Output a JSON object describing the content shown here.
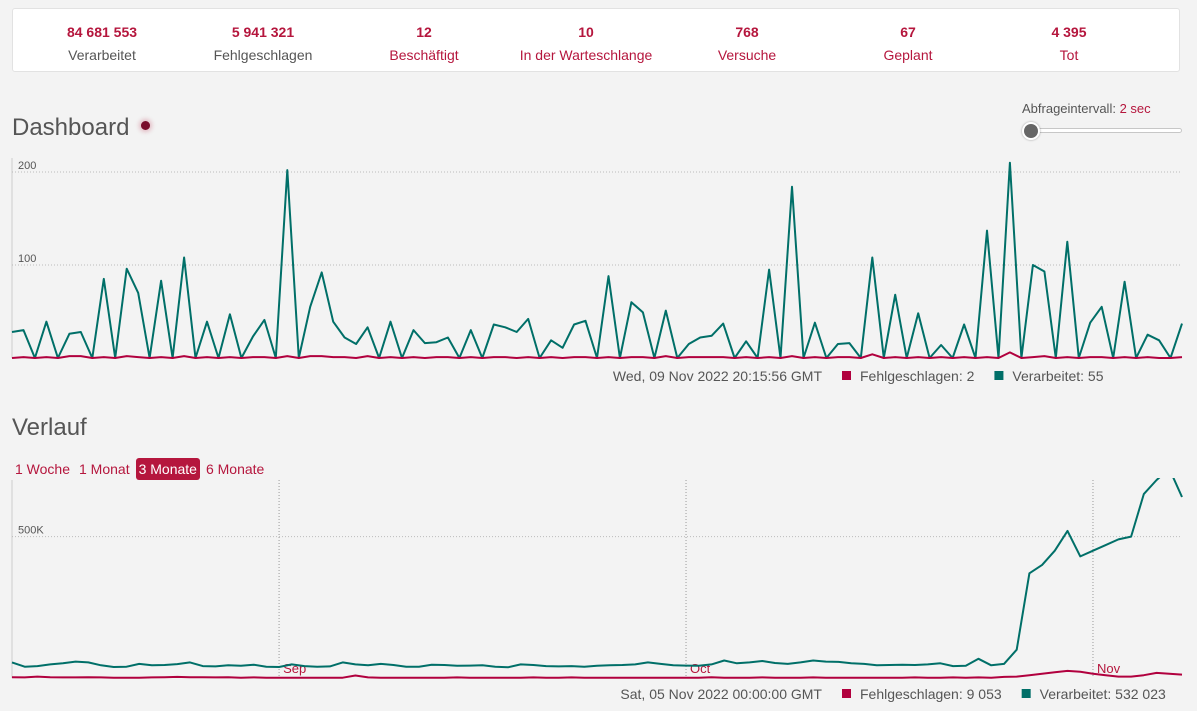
{
  "stats": [
    {
      "value": "84 681 553",
      "label": "Verarbeitet",
      "style": "neutral"
    },
    {
      "value": "5 941 321",
      "label": "Fehlgeschlagen",
      "style": "neutral"
    },
    {
      "value": "12",
      "label": "Beschäftigt",
      "style": "link"
    },
    {
      "value": "10",
      "label": "In der Warteschlange",
      "style": "link"
    },
    {
      "value": "768",
      "label": "Versuche",
      "style": "link"
    },
    {
      "value": "67",
      "label": "Geplant",
      "style": "link"
    },
    {
      "value": "4 395",
      "label": "Tot",
      "style": "link"
    }
  ],
  "dashboard": {
    "title": "Dashboard",
    "poll_label": "Abfrageintervall:",
    "poll_value": "2 sec",
    "poll_slider_level": 0.0,
    "hover_time": "Wed, 09 Nov 2022 20:15:56 GMT",
    "legend_failed": "Fehlgeschlagen: 2",
    "legend_processed": "Verarbeitet: 55"
  },
  "history": {
    "title": "Verlauf",
    "ranges": [
      "1 Woche",
      "1 Monat",
      "3 Monate",
      "6 Monate"
    ],
    "active_range": "3 Monate",
    "hover_time": "Sat, 05 Nov 2022 00:00:00 GMT",
    "legend_failed": "Fehlgeschlagen: 9 053",
    "legend_processed": "Verarbeitet: 532 023"
  },
  "colors": {
    "processed": "#006f68",
    "failed": "#b1003e",
    "accent": "#b5163d"
  },
  "chart_data": [
    {
      "type": "line",
      "ylim": [
        0,
        215
      ],
      "yticks": [
        "100",
        "200"
      ],
      "ytick_values": [
        100,
        200
      ],
      "grid": true,
      "series": [
        {
          "name": "Verarbeitet",
          "color": "#006f68",
          "values": [
            28,
            30,
            0,
            39,
            0,
            26,
            28,
            0,
            85,
            0,
            96,
            70,
            0,
            83,
            0,
            108,
            0,
            39,
            0,
            47,
            0,
            23,
            41,
            0,
            202,
            0,
            55,
            92,
            39,
            22,
            15,
            33,
            0,
            39,
            0,
            30,
            16,
            17,
            22,
            0,
            30,
            0,
            36,
            33,
            28,
            42,
            0,
            19,
            11,
            36,
            40,
            0,
            88,
            0,
            60,
            49,
            0,
            51,
            0,
            15,
            22,
            24,
            37,
            0,
            18,
            0,
            95,
            0,
            184,
            0,
            38,
            0,
            15,
            16,
            0,
            108,
            0,
            68,
            0,
            48,
            0,
            14,
            0,
            36,
            0,
            137,
            0,
            210,
            0,
            100,
            93,
            0,
            125,
            0,
            38,
            55,
            0,
            82,
            0,
            25,
            19,
            0,
            37
          ]
        },
        {
          "name": "Fehlgeschlagen",
          "color": "#b1003e",
          "values": [
            0,
            1,
            0,
            1,
            0,
            2,
            2,
            0,
            1,
            0,
            2,
            1,
            0,
            1,
            0,
            2,
            0,
            1,
            0,
            1,
            0,
            1,
            1,
            0,
            2,
            0,
            2,
            2,
            1,
            1,
            0,
            2,
            0,
            1,
            0,
            1,
            0,
            1,
            1,
            0,
            1,
            0,
            1,
            1,
            0,
            1,
            0,
            1,
            0,
            1,
            1,
            0,
            1,
            0,
            1,
            1,
            0,
            2,
            0,
            1,
            1,
            1,
            1,
            0,
            1,
            0,
            1,
            0,
            2,
            0,
            1,
            0,
            1,
            1,
            0,
            4,
            0,
            1,
            0,
            1,
            0,
            1,
            0,
            1,
            0,
            1,
            0,
            6,
            0,
            1,
            2,
            0,
            1,
            0,
            1,
            1,
            0,
            1,
            0,
            1,
            0,
            0,
            1
          ]
        }
      ]
    },
    {
      "type": "line",
      "ylim": [
        0,
        700000
      ],
      "yticks": [
        "500K"
      ],
      "ytick_values": [
        500000
      ],
      "xticks": [
        "Sep",
        "Oct",
        "Nov"
      ],
      "xtick_index": [
        21,
        53,
        85
      ],
      "series": [
        {
          "name": "Verarbeitet",
          "color": "#006f68",
          "values": [
            55000,
            40000,
            42000,
            48000,
            52000,
            58000,
            55000,
            45000,
            39000,
            40000,
            50000,
            45000,
            46000,
            49000,
            55000,
            42000,
            41000,
            45000,
            43000,
            47000,
            40000,
            39000,
            48000,
            42000,
            40000,
            41000,
            55000,
            48000,
            45000,
            50000,
            46000,
            40000,
            40000,
            47000,
            46000,
            43000,
            44000,
            45000,
            40000,
            38000,
            48000,
            46000,
            42000,
            41000,
            42000,
            40000,
            43000,
            45000,
            46000,
            48000,
            55000,
            50000,
            45000,
            44000,
            43000,
            48000,
            62000,
            52000,
            55000,
            60000,
            53000,
            50000,
            55000,
            62000,
            58000,
            57000,
            52000,
            50000,
            45000,
            46000,
            47000,
            46000,
            48000,
            52000,
            42000,
            43000,
            68000,
            45000,
            50000,
            100000,
            370000,
            400000,
            450000,
            520000,
            430000,
            450000,
            470000,
            490000,
            500000,
            650000,
            700000,
            740000,
            640000
          ]
        },
        {
          "name": "Fehlgeschlagen",
          "color": "#b1003e",
          "values": [
            3000,
            2000,
            5000,
            3000,
            2000,
            2000,
            3000,
            2000,
            1000,
            1000,
            1000,
            2000,
            3000,
            4000,
            3000,
            3000,
            2000,
            3000,
            1000,
            2000,
            1000,
            1000,
            1000,
            1000,
            1000,
            1000,
            1000,
            9000,
            2000,
            1000,
            1000,
            1000,
            1000,
            1000,
            1000,
            2000,
            1000,
            1000,
            1000,
            1000,
            1000,
            2000,
            1000,
            1000,
            2000,
            1000,
            1000,
            1000,
            1000,
            1000,
            1000,
            1000,
            1000,
            1000,
            1000,
            3000,
            1000,
            1000,
            1000,
            2000,
            1000,
            1000,
            1000,
            2000,
            1000,
            1000,
            1000,
            1000,
            1000,
            1000,
            1000,
            2000,
            1000,
            1000,
            2000,
            1000,
            2000,
            1000,
            4000,
            5000,
            10000,
            15000,
            20000,
            25000,
            22000,
            15000,
            10000,
            5000,
            5000,
            10000,
            18000,
            15000,
            12000
          ]
        }
      ]
    }
  ]
}
